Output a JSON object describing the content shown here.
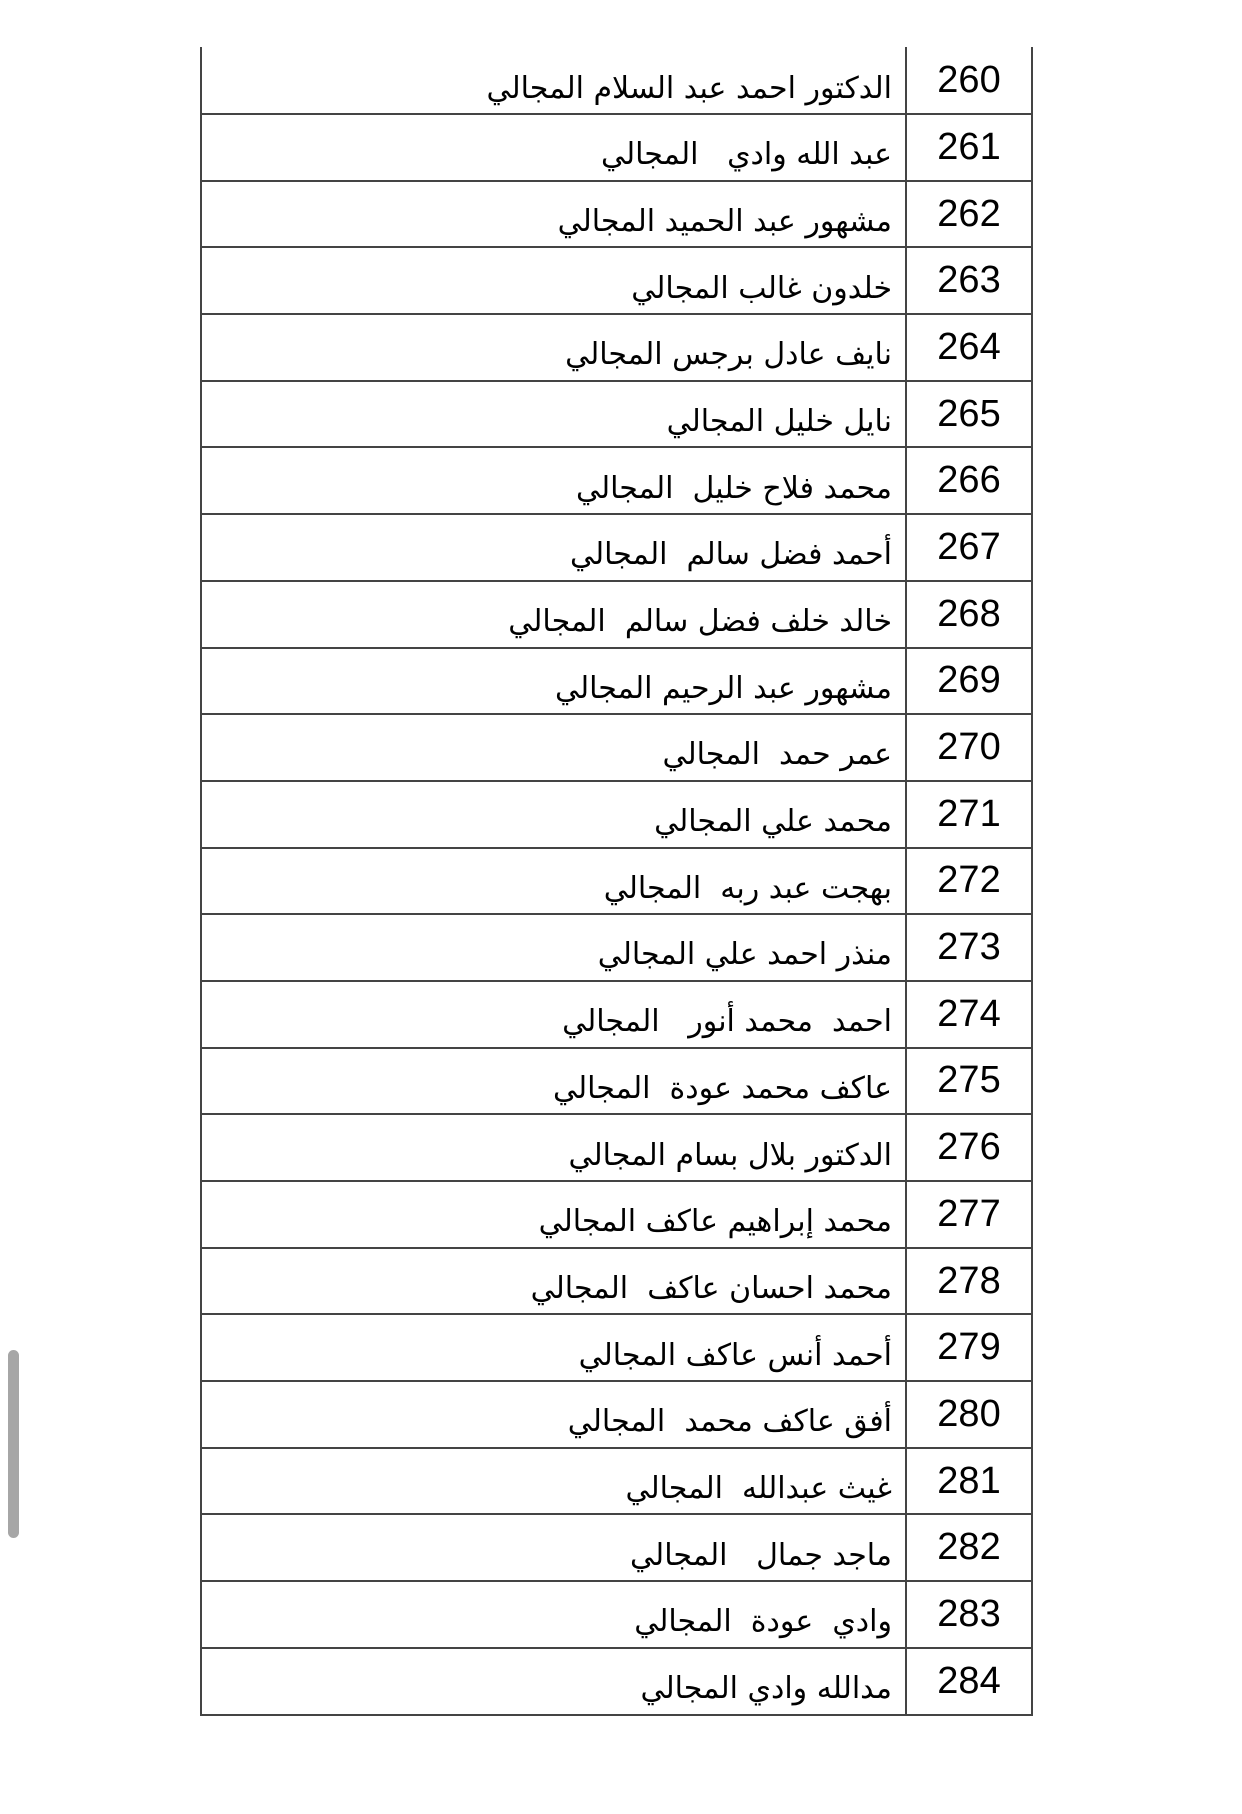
{
  "colors": {
    "table_border": "#444444",
    "text": "#000000",
    "scrollbar_thumb": "#a6a6a6"
  },
  "table": {
    "rows": [
      {
        "number": "260",
        "name": "الدكتور احمد عبد السلام المجالي"
      },
      {
        "number": "261",
        "name": "عبد الله وادي   المجالي"
      },
      {
        "number": "262",
        "name": "مشهور عبد الحميد المجالي"
      },
      {
        "number": "263",
        "name": "خلدون غالب المجالي"
      },
      {
        "number": "264",
        "name": "نايف عادل برجس المجالي"
      },
      {
        "number": "265",
        "name": "نايل خليل المجالي"
      },
      {
        "number": "266",
        "name": "محمد فلاح خليل  المجالي"
      },
      {
        "number": "267",
        "name": "أحمد فضل سالم  المجالي"
      },
      {
        "number": "268",
        "name": "خالد خلف فضل سالم  المجالي"
      },
      {
        "number": "269",
        "name": "مشهور عبد الرحيم المجالي"
      },
      {
        "number": "270",
        "name": "عمر حمد  المجالي"
      },
      {
        "number": "271",
        "name": "محمد علي المجالي"
      },
      {
        "number": "272",
        "name": "بهجت عبد ربه  المجالي"
      },
      {
        "number": "273",
        "name": "منذر احمد علي المجالي"
      },
      {
        "number": "274",
        "name": "احمد  محمد أنور   المجالي"
      },
      {
        "number": "275",
        "name": "عاكف محمد عودة  المجالي"
      },
      {
        "number": "276",
        "name": "الدكتور بلال بسام المجالي"
      },
      {
        "number": "277",
        "name": "محمد إبراهيم عاكف المجالي"
      },
      {
        "number": "278",
        "name": "محمد احسان عاكف  المجالي"
      },
      {
        "number": "279",
        "name": "أحمد أنس عاكف المجالي"
      },
      {
        "number": "280",
        "name": "أفق عاكف محمد  المجالي"
      },
      {
        "number": "281",
        "name": "غيث عبدالله  المجالي"
      },
      {
        "number": "282",
        "name": "ماجد جمال   المجالي"
      },
      {
        "number": "283",
        "name": "وادي  عودة  المجالي"
      },
      {
        "number": "284",
        "name": "مدالله وادي المجالي"
      }
    ]
  }
}
